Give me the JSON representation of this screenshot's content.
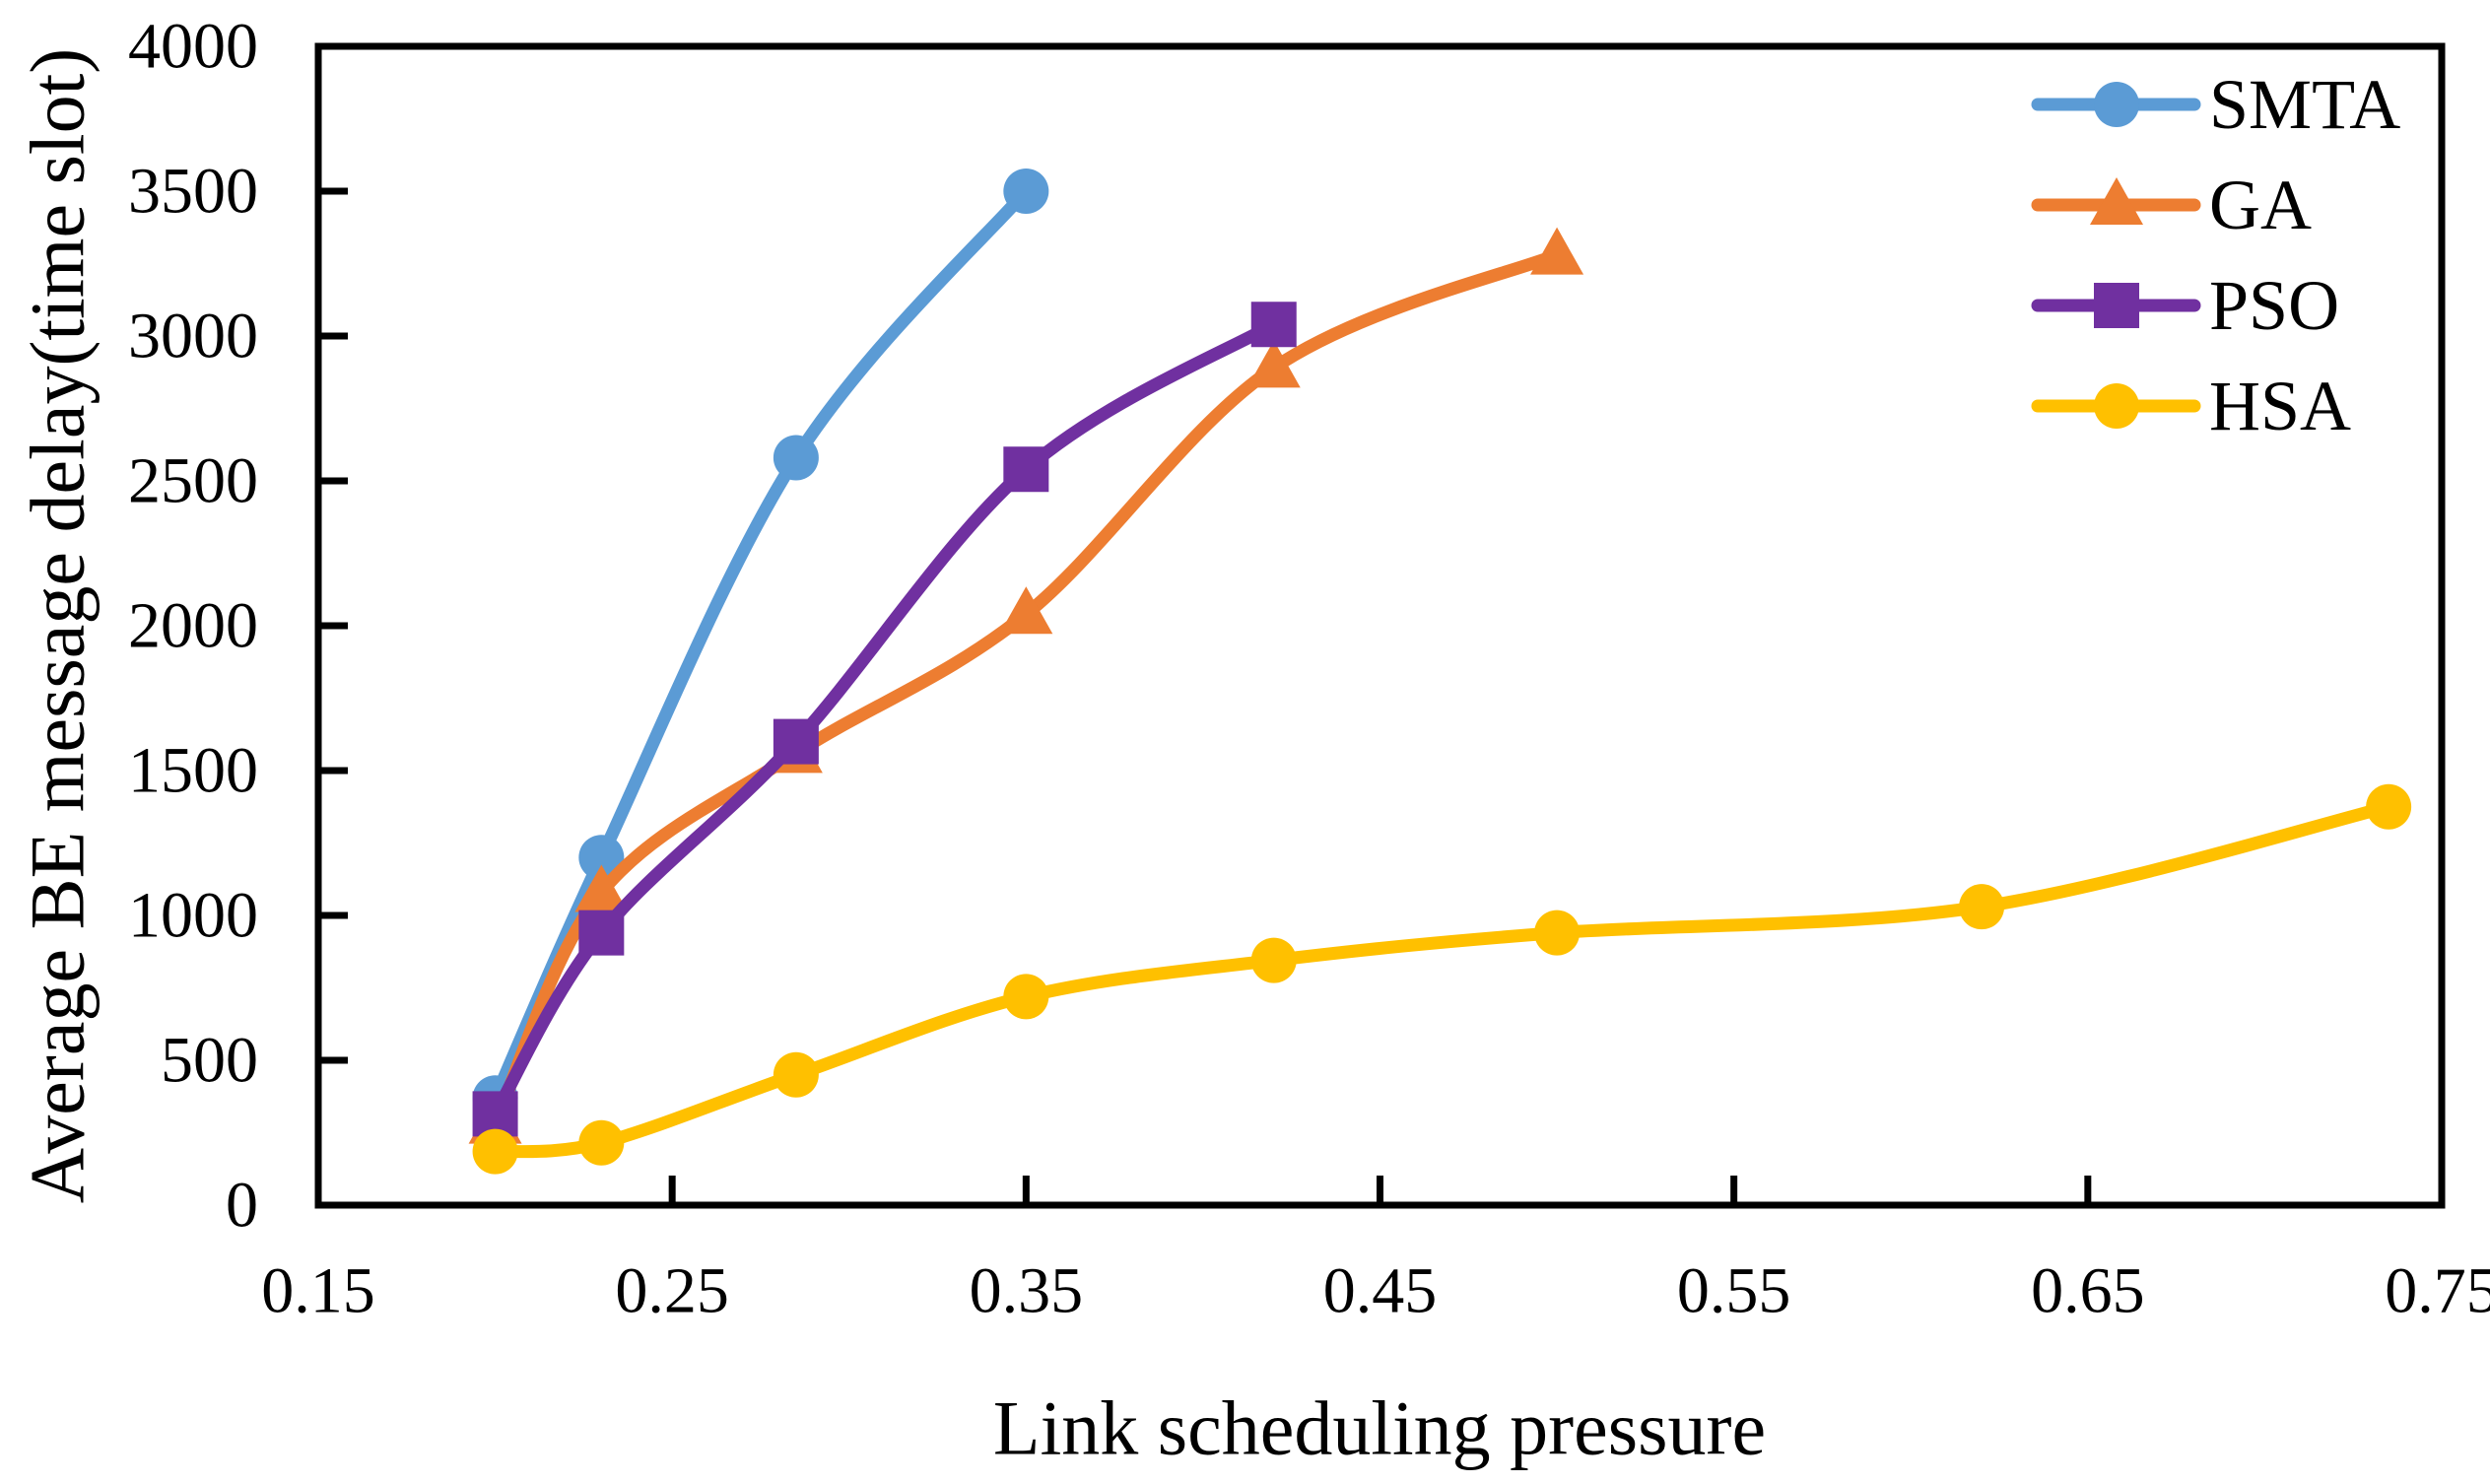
{
  "chart_data": {
    "type": "line",
    "title": "",
    "xlabel": "Link scheduling pressure",
    "ylabel": "Average BE message delay(time slot)",
    "xlim": [
      0.15,
      0.75
    ],
    "ylim": [
      0,
      4000
    ],
    "x_ticks": [
      0.15,
      0.25,
      0.35,
      0.45,
      0.55,
      0.65,
      0.75
    ],
    "x_tick_labels": [
      "0.15",
      "0.25",
      "0.35",
      "0.45",
      "0.55",
      "0.65",
      "0.75"
    ],
    "y_ticks": [
      0,
      500,
      1000,
      1500,
      2000,
      2500,
      3000,
      3500,
      4000
    ],
    "y_tick_labels": [
      "0",
      "500",
      "1000",
      "1500",
      "2000",
      "2500",
      "3000",
      "3500",
      "4000"
    ],
    "grid": false,
    "legend_position": "top-right-inside",
    "line_style": "smooth",
    "axis_color": "#000000",
    "series": [
      {
        "name": "SMTA",
        "color": "#5B9BD5",
        "marker": "circle",
        "x": [
          0.2,
          0.23,
          0.285,
          0.35
        ],
        "y": [
          370,
          1200,
          2580,
          3500
        ]
      },
      {
        "name": "GA",
        "color": "#ED7D31",
        "marker": "triangle",
        "x": [
          0.2,
          0.23,
          0.285,
          0.35,
          0.42,
          0.5
        ],
        "y": [
          280,
          1080,
          1560,
          2040,
          2890,
          3280
        ]
      },
      {
        "name": "PSO",
        "color": "#7030A0",
        "marker": "square",
        "x": [
          0.2,
          0.23,
          0.285,
          0.35,
          0.42
        ],
        "y": [
          315,
          940,
          1600,
          2540,
          3040
        ]
      },
      {
        "name": "HSA",
        "color": "#FFC000",
        "marker": "circle",
        "x": [
          0.2,
          0.23,
          0.285,
          0.35,
          0.42,
          0.5,
          0.62,
          0.735
        ],
        "y": [
          185,
          215,
          450,
          720,
          845,
          940,
          1030,
          1375
        ]
      }
    ]
  }
}
